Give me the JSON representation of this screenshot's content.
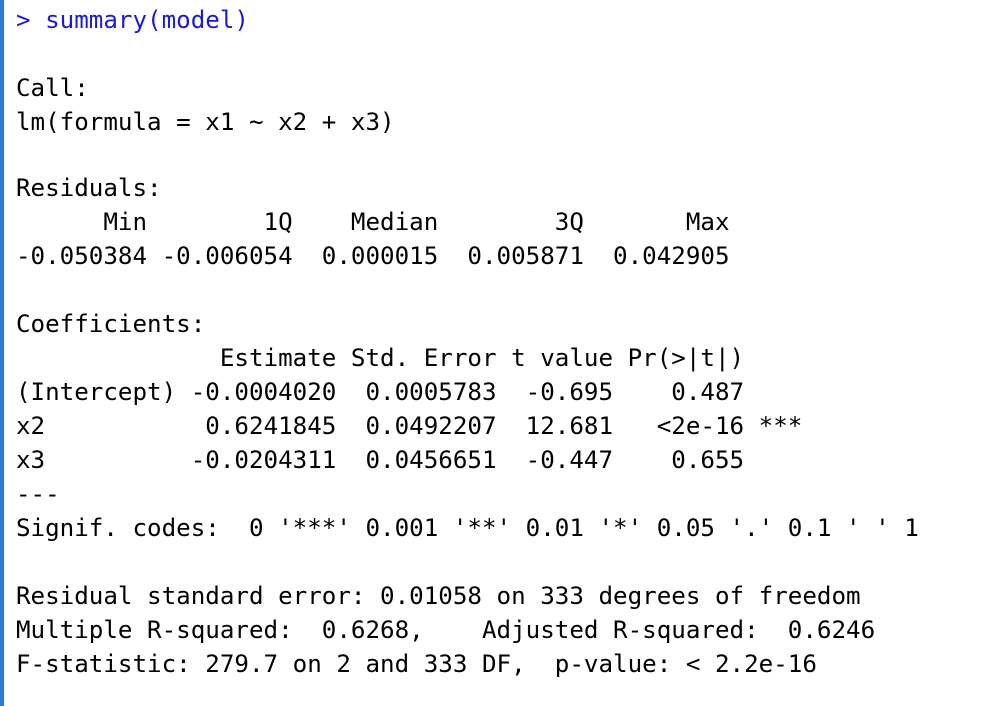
{
  "console": {
    "prompt_symbol": ">",
    "command": "summary(model)",
    "output_lines": [
      "",
      "Call:",
      "lm(formula = x1 ~ x2 + x3)",
      "",
      "Residuals:",
      "      Min        1Q    Median        3Q       Max ",
      "-0.050384 -0.006054  0.000015  0.005871  0.042905 ",
      "",
      "Coefficients:",
      "              Estimate Std. Error t value Pr(>|t|)    ",
      "(Intercept) -0.0004020  0.0005783  -0.695    0.487    ",
      "x2           0.6241845  0.0492207  12.681   <2e-16 ***",
      "x3          -0.0204311  0.0456651  -0.447    0.655    ",
      "---",
      "Signif. codes:  0 '***' 0.001 '**' 0.01 '*' 0.05 '.' 0.1 ' ' 1",
      "",
      "Residual standard error: 0.01058 on 333 degrees of freedom",
      "Multiple R-squared:  0.6268,\tAdjusted R-squared:  0.6246 ",
      "F-statistic: 279.7 on 2 and 333 DF,  p-value: < 2.2e-16"
    ]
  },
  "colors": {
    "prompt": "#1a1ad8",
    "output": "#000000",
    "left_border": "#2a7fd4",
    "background": "#ffffff"
  }
}
